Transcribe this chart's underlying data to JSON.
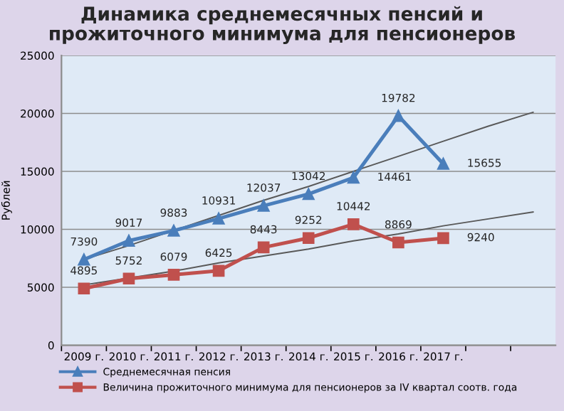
{
  "chart_data": {
    "type": "line",
    "title": "Динамика среднемесячных пенсий и\nпрожиточного минимума для пенсионеров",
    "ylabel": "Рублей",
    "categories": [
      "2009 г.",
      "2010 г.",
      "2011 г.",
      "2012 г.",
      "2013 г.",
      "2014 г.",
      "2015 г.",
      "2016 г.",
      "2017 г.",
      null,
      null
    ],
    "series": [
      {
        "name": "Среднемесячная пенсия",
        "color": "#4a7ebb",
        "marker": "triangle",
        "data_labels": true,
        "values": [
          7390,
          9017,
          9883,
          10931,
          12037,
          13042,
          14461,
          19782,
          15655,
          null,
          null
        ]
      },
      {
        "name": "Величина прожиточного минимума для пенсионеров за IV квартал соотв. года",
        "color": "#c0504d",
        "marker": "square",
        "data_labels": true,
        "values": [
          4895,
          5752,
          6079,
          6425,
          8443,
          9252,
          10442,
          8869,
          9240,
          null,
          null
        ]
      },
      {
        "color": "#595959",
        "marker": "none",
        "values": [
          7400,
          8600,
          9900,
          11200,
          12500,
          13700,
          15000,
          16300,
          17600,
          18900,
          20100
        ]
      },
      {
        "color": "#595959",
        "marker": "none",
        "values": [
          5200,
          5800,
          6400,
          7100,
          7700,
          8300,
          9000,
          9600,
          10300,
          10900,
          11500
        ]
      }
    ],
    "ylim": [
      0,
      25000
    ],
    "yticks": [
      0,
      5000,
      10000,
      15000,
      20000,
      25000
    ],
    "grid": "y",
    "legend": "bottom"
  }
}
